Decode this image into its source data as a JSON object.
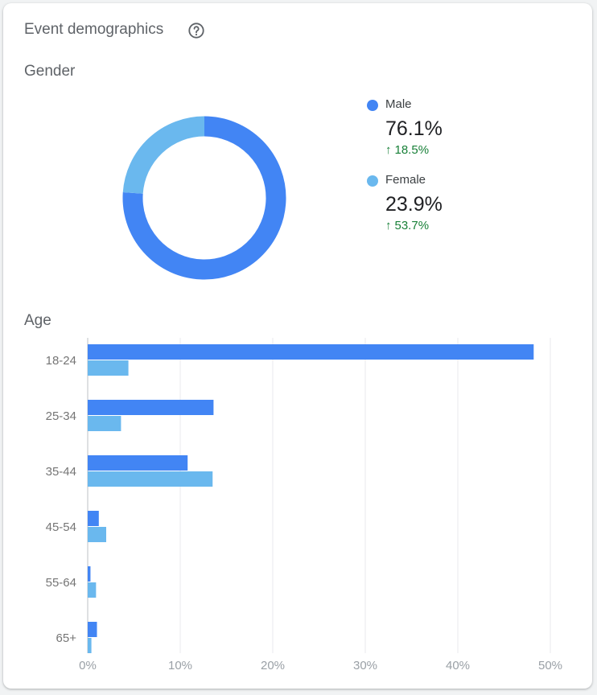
{
  "card": {
    "title": "Event demographics",
    "help_icon": "help-circle-icon"
  },
  "gender": {
    "label": "Gender",
    "items": [
      {
        "label": "Male",
        "value": "76.1%",
        "change": "18.5%",
        "change_icon": "arrow-up-icon",
        "color": "#4285f4"
      },
      {
        "label": "Female",
        "value": "23.9%",
        "change": "53.7%",
        "change_icon": "arrow-up-icon",
        "color": "#6ab8ee"
      }
    ]
  },
  "age": {
    "label": "Age"
  },
  "chart_data": [
    {
      "type": "pie",
      "style": "donut",
      "labels": [
        "Male",
        "Female"
      ],
      "values": [
        76.1,
        23.9
      ],
      "colors": [
        "#4285f4",
        "#6ab8ee"
      ]
    },
    {
      "type": "bar",
      "orientation": "horizontal",
      "categories": [
        "18-24",
        "25-34",
        "35-44",
        "45-54",
        "55-64",
        "65+"
      ],
      "series": [
        {
          "name": "Male",
          "color": "#4285f4",
          "values": [
            48.2,
            13.6,
            10.8,
            1.2,
            0.3,
            1.0
          ]
        },
        {
          "name": "Female",
          "color": "#6ab8ee",
          "values": [
            4.4,
            3.6,
            13.5,
            2.0,
            0.9,
            0.4
          ]
        }
      ],
      "xlim": [
        0,
        50
      ],
      "xticks": [
        "0%",
        "10%",
        "20%",
        "30%",
        "40%",
        "50%"
      ],
      "grid": true
    }
  ]
}
